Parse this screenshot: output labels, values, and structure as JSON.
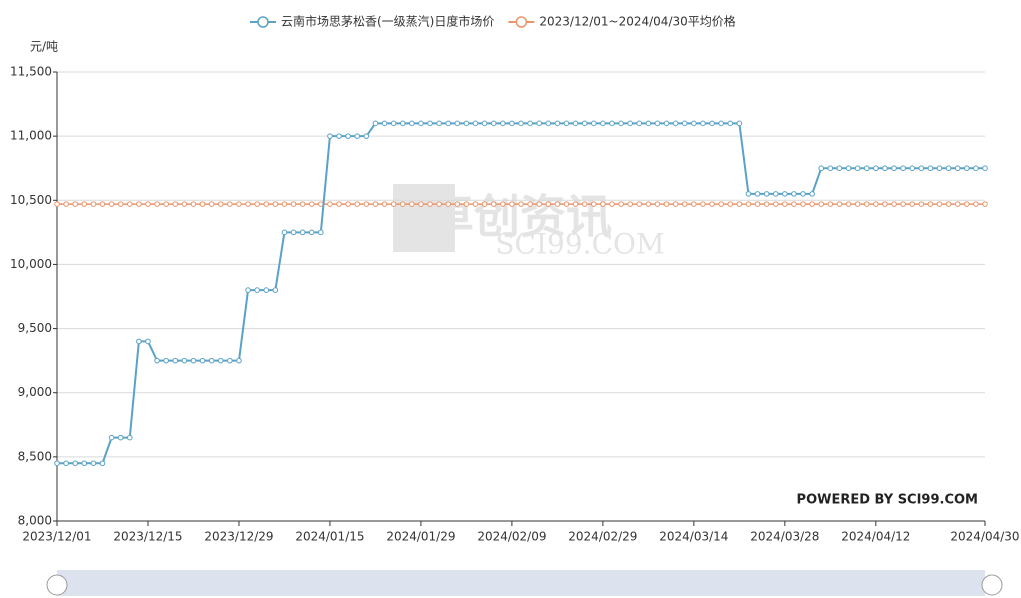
{
  "chart_data": {
    "type": "line",
    "y_label": "元/吨",
    "watermark": {
      "cn": "卓创资讯",
      "en": "SCI99.COM"
    },
    "credit": "POWERED BY SCI99.COM",
    "categories": [
      "2023/12/01",
      null,
      null,
      null,
      null,
      null,
      null,
      null,
      null,
      null,
      "2023/12/15",
      null,
      null,
      null,
      null,
      null,
      null,
      null,
      null,
      null,
      "2023/12/29",
      null,
      null,
      null,
      null,
      null,
      null,
      null,
      null,
      null,
      "2024/01/15",
      null,
      null,
      null,
      null,
      null,
      null,
      null,
      null,
      null,
      "2024/01/29",
      null,
      null,
      null,
      null,
      null,
      null,
      null,
      null,
      null,
      "2024/02/09",
      null,
      null,
      null,
      null,
      null,
      null,
      null,
      null,
      null,
      "2024/02/29",
      null,
      null,
      null,
      null,
      null,
      null,
      null,
      null,
      null,
      "2024/03/14",
      null,
      null,
      null,
      null,
      null,
      null,
      null,
      null,
      null,
      "2024/03/28",
      null,
      null,
      null,
      null,
      null,
      null,
      null,
      null,
      null,
      "2024/04/12",
      null,
      null,
      null,
      null,
      null,
      null,
      null,
      null,
      null,
      null,
      null,
      "2024/04/30"
    ],
    "series": [
      {
        "name": "云南市场思茅松香(一级蒸汽)日度市场价",
        "color": "#5aa2c6",
        "values": [
          8450,
          8450,
          8450,
          8450,
          8450,
          8450,
          8650,
          8650,
          8650,
          9400,
          9400,
          9250,
          9250,
          9250,
          9250,
          9250,
          9250,
          9250,
          9250,
          9250,
          9250,
          9800,
          9800,
          9800,
          9800,
          10250,
          10250,
          10250,
          10250,
          10250,
          11000,
          11000,
          11000,
          11000,
          11000,
          11100,
          11100,
          11100,
          11100,
          11100,
          11100,
          11100,
          11100,
          11100,
          11100,
          11100,
          11100,
          11100,
          11100,
          11100,
          11100,
          11100,
          11100,
          11100,
          11100,
          11100,
          11100,
          11100,
          11100,
          11100,
          11100,
          11100,
          11100,
          11100,
          11100,
          11100,
          11100,
          11100,
          11100,
          11100,
          11100,
          11100,
          11100,
          11100,
          11100,
          11100,
          10550,
          10550,
          10550,
          10550,
          10550,
          10550,
          10550,
          10550,
          10750,
          10750,
          10750,
          10750,
          10750,
          10750,
          10750,
          10750,
          10750,
          10750,
          10750,
          10750,
          10750,
          10750,
          10750,
          10750,
          10750,
          10750,
          10750
        ]
      },
      {
        "name": "2023/12/01~2024/04/30平均价格",
        "color": "#e8956a",
        "values": [
          10470,
          10470,
          10470,
          10470,
          10470,
          10470,
          10470,
          10470,
          10470,
          10470,
          10470,
          10470,
          10470,
          10470,
          10470,
          10470,
          10470,
          10470,
          10470,
          10470,
          10470,
          10470,
          10470,
          10470,
          10470,
          10470,
          10470,
          10470,
          10470,
          10470,
          10470,
          10470,
          10470,
          10470,
          10470,
          10470,
          10470,
          10470,
          10470,
          10470,
          10470,
          10470,
          10470,
          10470,
          10470,
          10470,
          10470,
          10470,
          10470,
          10470,
          10470,
          10470,
          10470,
          10470,
          10470,
          10470,
          10470,
          10470,
          10470,
          10470,
          10470,
          10470,
          10470,
          10470,
          10470,
          10470,
          10470,
          10470,
          10470,
          10470,
          10470,
          10470,
          10470,
          10470,
          10470,
          10470,
          10470,
          10470,
          10470,
          10470,
          10470,
          10470,
          10470,
          10470,
          10470,
          10470,
          10470,
          10470,
          10470,
          10470,
          10470,
          10470,
          10470,
          10470,
          10470,
          10470,
          10470,
          10470,
          10470,
          10470,
          10470,
          10470,
          10470
        ]
      }
    ],
    "ylim": [
      8000,
      11500
    ],
    "yticks": [
      {
        "value": 8000,
        "label": "8,000"
      },
      {
        "value": 8500,
        "label": "8,500"
      },
      {
        "value": 9000,
        "label": "9,000"
      },
      {
        "value": 9500,
        "label": "9,500"
      },
      {
        "value": 10000,
        "label": "10,000"
      },
      {
        "value": 10500,
        "label": "10,500"
      },
      {
        "value": 11000,
        "label": "11,000"
      },
      {
        "value": 11500,
        "label": "11,500"
      }
    ],
    "grid": true,
    "legend": "top"
  }
}
